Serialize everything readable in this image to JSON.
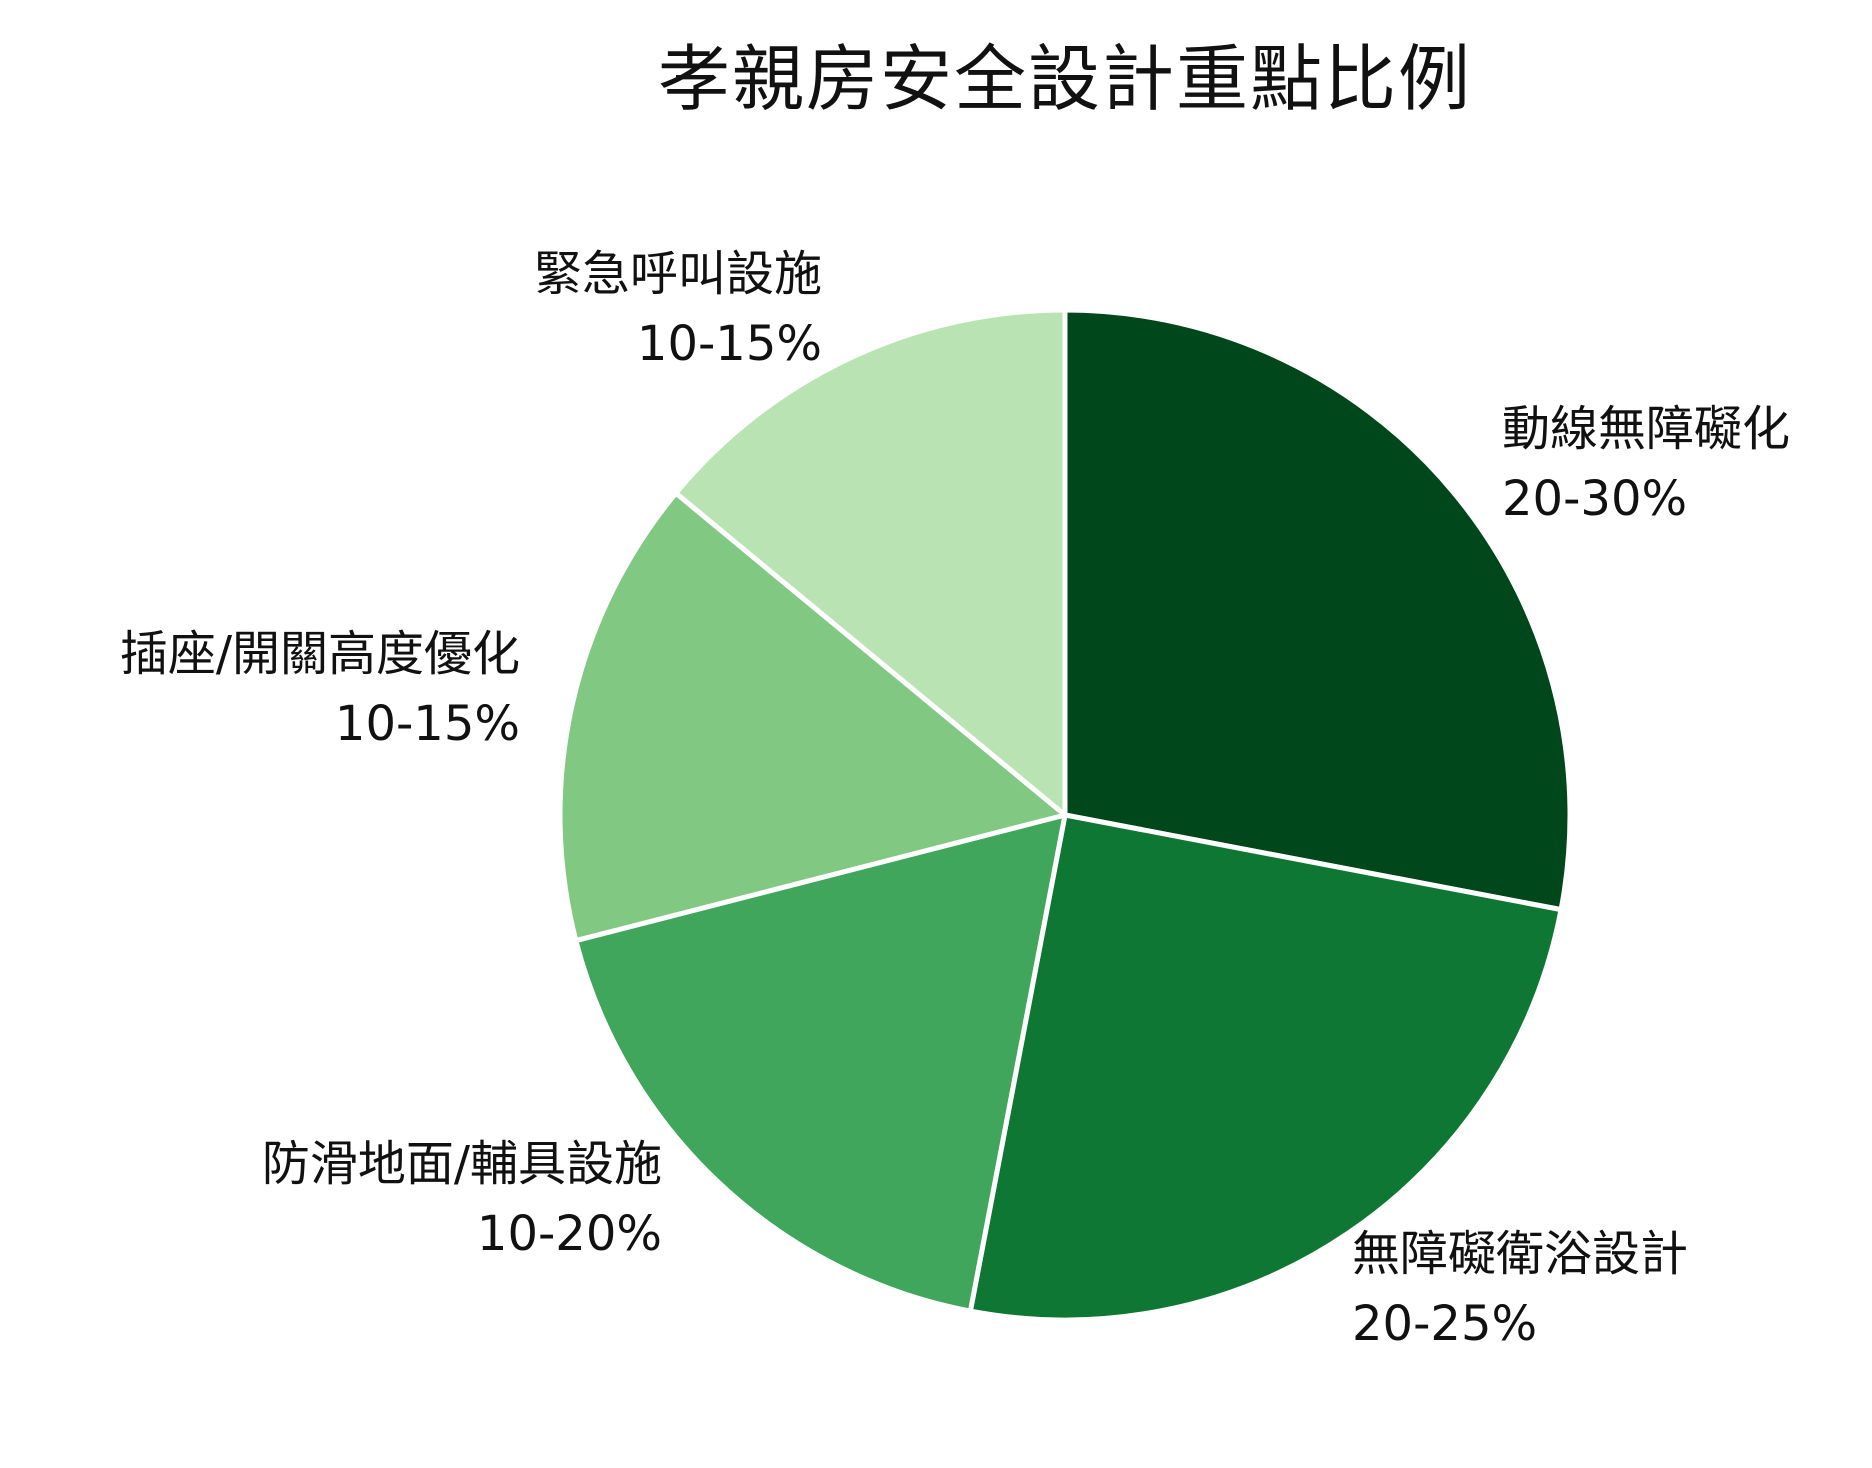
{
  "chart_data": {
    "type": "pie",
    "title": "孝親房安全設計重點比例",
    "slices": [
      {
        "name": "動線無障礙化",
        "range": "20-30%",
        "value": 28,
        "color": "#00471b"
      },
      {
        "name": "無障礙衛浴設計",
        "range": "20-25%",
        "value": 25,
        "color": "#0f7734"
      },
      {
        "name": "防滑地面/輔具設施",
        "range": "10-20%",
        "value": 18,
        "color": "#3fa65c"
      },
      {
        "name": "插座/開關高度優化",
        "range": "10-15%",
        "value": 15,
        "color": "#81c882"
      },
      {
        "name": "緊急呼叫設施",
        "range": "10-15%",
        "value": 14,
        "color": "#b9e3b2"
      }
    ],
    "start_angle": "12 o'clock",
    "direction": "clockwise",
    "legend": "none"
  }
}
